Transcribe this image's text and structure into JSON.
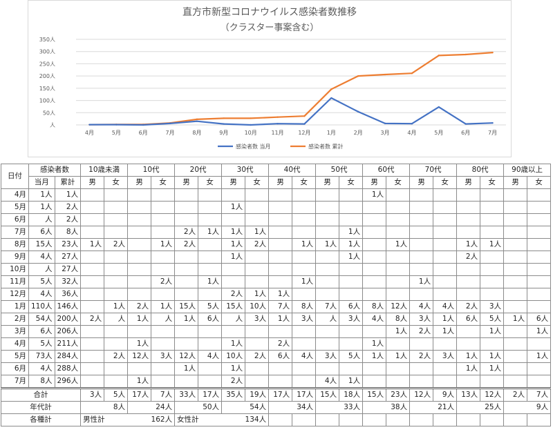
{
  "chart_data": {
    "type": "line",
    "title": "直方市新型コロナウイルス感染者数推移",
    "subtitle": "（クラスター事案含む）",
    "categories": [
      "4月",
      "5月",
      "6月",
      "7月",
      "8月",
      "9月",
      "10月",
      "11月",
      "12月",
      "1月",
      "2月",
      "3月",
      "4月",
      "5月",
      "6月",
      "7月"
    ],
    "y_ticks": [
      "人",
      "50人",
      "100人",
      "150人",
      "200人",
      "250人",
      "300人",
      "350人"
    ],
    "ylim": [
      0,
      350
    ],
    "grid": true,
    "legend_position": "bottom",
    "series": [
      {
        "name": "感染者数 当月",
        "color": "#4472c4",
        "values": [
          1,
          1,
          0,
          6,
          15,
          4,
          0,
          5,
          4,
          110,
          54,
          6,
          5,
          73,
          4,
          8
        ]
      },
      {
        "name": "感染者数 累計",
        "color": "#ed7d31",
        "values": [
          1,
          2,
          2,
          8,
          23,
          27,
          27,
          32,
          36,
          146,
          200,
          206,
          211,
          284,
          288,
          296
        ]
      }
    ]
  },
  "table": {
    "date_header": "日付",
    "infected_header": "感染者数",
    "month_label": "当月",
    "cumulative_label": "累計",
    "age_groups": [
      "10歳未満",
      "10代",
      "20代",
      "30代",
      "40代",
      "50代",
      "60代",
      "70代",
      "80代",
      "90歳以上"
    ],
    "male": "男",
    "female": "女",
    "rows": [
      {
        "date": "4月",
        "m": "1人",
        "c": "1人",
        "cells": [
          "",
          "",
          "",
          "",
          "",
          "",
          "",
          "",
          "",
          "",
          "",
          "",
          "1人",
          "",
          "",
          "",
          "",
          "",
          "",
          ""
        ]
      },
      {
        "date": "5月",
        "m": "1人",
        "c": "2人",
        "cells": [
          "",
          "",
          "",
          "",
          "",
          "",
          "1人",
          "",
          "",
          "",
          "",
          "",
          "",
          "",
          "",
          "",
          "",
          "",
          "",
          ""
        ]
      },
      {
        "date": "6月",
        "m": "人",
        "c": "2人",
        "cells": [
          "",
          "",
          "",
          "",
          "",
          "",
          "",
          "",
          "",
          "",
          "",
          "",
          "",
          "",
          "",
          "",
          "",
          "",
          "",
          ""
        ]
      },
      {
        "date": "7月",
        "m": "6人",
        "c": "8人",
        "cells": [
          "",
          "",
          "",
          "",
          "2人",
          "1人",
          "1人",
          "1人",
          "",
          "",
          "",
          "1人",
          "",
          "",
          "",
          "",
          "",
          "",
          "",
          ""
        ]
      },
      {
        "date": "8月",
        "m": "15人",
        "c": "23人",
        "cells": [
          "1人",
          "2人",
          "",
          "1人",
          "2人",
          "",
          "1人",
          "2人",
          "",
          "1人",
          "1人",
          "1人",
          "",
          "1人",
          "",
          "",
          "1人",
          "1人",
          "",
          ""
        ]
      },
      {
        "date": "9月",
        "m": "4人",
        "c": "27人",
        "cells": [
          "",
          "",
          "",
          "",
          "",
          "",
          "1人",
          "",
          "",
          "",
          "",
          "1人",
          "",
          "",
          "",
          "",
          "2人",
          "",
          "",
          ""
        ]
      },
      {
        "date": "10月",
        "m": "人",
        "c": "27人",
        "cells": [
          "",
          "",
          "",
          "",
          "",
          "",
          "",
          "",
          "",
          "",
          "",
          "",
          "",
          "",
          "",
          "",
          "",
          "",
          "",
          ""
        ]
      },
      {
        "date": "11月",
        "m": "5人",
        "c": "32人",
        "cells": [
          "",
          "",
          "",
          "2人",
          "",
          "1人",
          "",
          "",
          "",
          "1人",
          "",
          "",
          "",
          "",
          "1人",
          "",
          "",
          "",
          "",
          ""
        ]
      },
      {
        "date": "12月",
        "m": "4人",
        "c": "36人",
        "cells": [
          "",
          "",
          "",
          "",
          "",
          "",
          "2人",
          "1人",
          "1人",
          "",
          "",
          "",
          "",
          "",
          "",
          "",
          "",
          "",
          "",
          ""
        ]
      },
      {
        "date": "1月",
        "m": "110人",
        "c": "146人",
        "cells": [
          "",
          "1人",
          "2人",
          "1人",
          "15人",
          "5人",
          "15人",
          "10人",
          "7人",
          "8人",
          "7人",
          "6人",
          "8人",
          "12人",
          "4人",
          "4人",
          "2人",
          "3人",
          "",
          ""
        ]
      },
      {
        "date": "2月",
        "m": "54人",
        "c": "200人",
        "cells": [
          "2人",
          "人",
          "1人",
          "人",
          "1人",
          "6人",
          "人",
          "3人",
          "1人",
          "3人",
          "人",
          "3人",
          "4人",
          "8人",
          "3人",
          "1人",
          "6人",
          "5人",
          "1人",
          "6人"
        ]
      },
      {
        "date": "3月",
        "m": "6人",
        "c": "206人",
        "cells": [
          "",
          "",
          "",
          "",
          "",
          "",
          "",
          "",
          "",
          "",
          "",
          "",
          "",
          "1人",
          "2人",
          "1人",
          "",
          "1人",
          "",
          "1人"
        ]
      },
      {
        "date": "4月",
        "m": "5人",
        "c": "211人",
        "cells": [
          "",
          "",
          "1人",
          "",
          "",
          "",
          "1人",
          "",
          "2人",
          "",
          "",
          "",
          "1人",
          "",
          "",
          "",
          "",
          "",
          "",
          ""
        ]
      },
      {
        "date": "5月",
        "m": "73人",
        "c": "284人",
        "cells": [
          "",
          "2人",
          "12人",
          "3人",
          "12人",
          "4人",
          "10人",
          "2人",
          "6人",
          "4人",
          "3人",
          "5人",
          "1人",
          "1人",
          "2人",
          "3人",
          "1人",
          "1人",
          "",
          "1人"
        ]
      },
      {
        "date": "6月",
        "m": "4人",
        "c": "288人",
        "cells": [
          "",
          "",
          "",
          "",
          "1人",
          "",
          "1人",
          "",
          "",
          "",
          "",
          "",
          "",
          "",
          "",
          "",
          "1人",
          "1人",
          "",
          ""
        ]
      },
      {
        "date": "7月",
        "m": "8人",
        "c": "296人",
        "cells": [
          "",
          "",
          "1人",
          "",
          "",
          "",
          "2人",
          "",
          "",
          "",
          "4人",
          "1人",
          "",
          "",
          "",
          "",
          "",
          "",
          "",
          ""
        ]
      }
    ],
    "total_label": "合計",
    "totals": [
      "3人",
      "5人",
      "17人",
      "7人",
      "33人",
      "17人",
      "35人",
      "19人",
      "17人",
      "17人",
      "15人",
      "18人",
      "15人",
      "23人",
      "12人",
      "9人",
      "13人",
      "12人",
      "2人",
      "7人"
    ],
    "age_total_label": "年代計",
    "age_totals": [
      "8人",
      "24人",
      "50人",
      "54人",
      "34人",
      "33人",
      "38人",
      "21人",
      "25人",
      "9人"
    ],
    "gender_label": "各種計",
    "male_total_label": "男性計",
    "male_total": "162人",
    "female_total_label": "女性計",
    "female_total": "134人"
  }
}
